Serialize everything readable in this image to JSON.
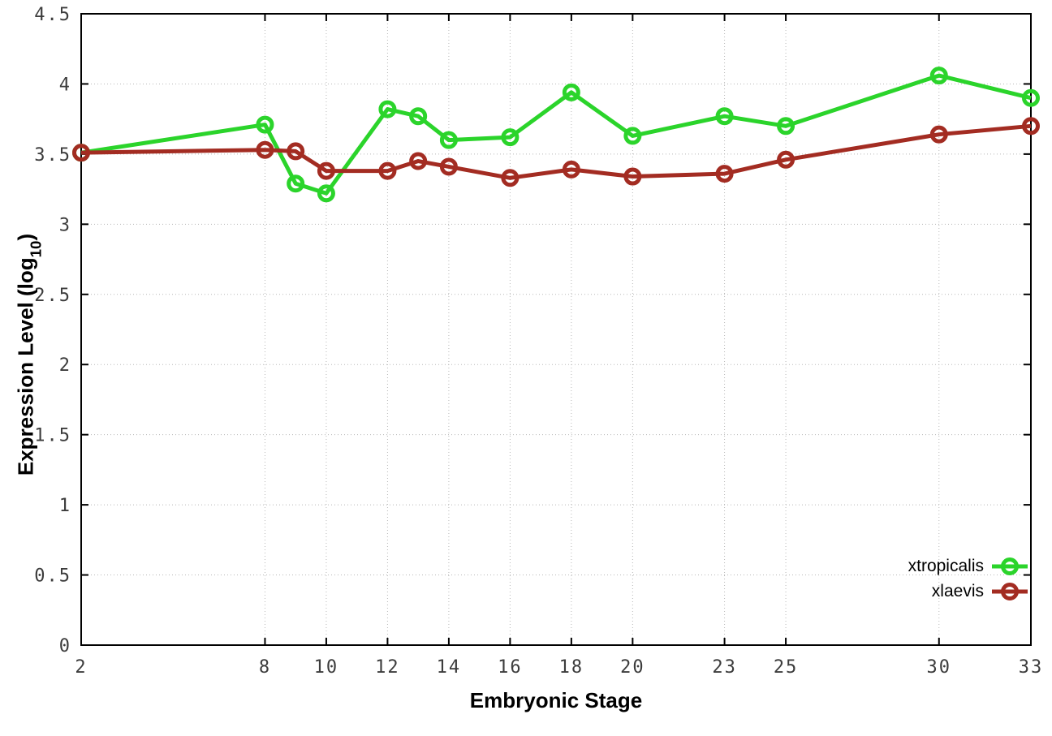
{
  "chart_data": {
    "type": "line",
    "title": "",
    "xlabel": "Embryonic Stage",
    "ylabel": {
      "pre": "Expression Level (log",
      "sub": "10",
      "post": ")"
    },
    "xlim": [
      2,
      33
    ],
    "ylim": [
      0,
      4.5
    ],
    "xticks": [
      2,
      8,
      10,
      12,
      14,
      16,
      18,
      20,
      23,
      25,
      30,
      33
    ],
    "yticks": [
      0,
      0.5,
      1,
      1.5,
      2,
      2.5,
      3,
      3.5,
      4,
      4.5
    ],
    "grid": true,
    "legend_position": "bottom-right",
    "x": [
      2,
      8,
      9,
      10,
      12,
      13,
      14,
      16,
      18,
      20,
      23,
      25,
      30,
      33
    ],
    "series": [
      {
        "name": "xtropicalis",
        "color": "#2bd42b",
        "values": [
          3.51,
          3.71,
          3.29,
          3.22,
          3.82,
          3.77,
          3.6,
          3.62,
          3.94,
          3.63,
          3.77,
          3.7,
          4.06,
          3.9
        ]
      },
      {
        "name": "xlaevis",
        "color": "#a32c22",
        "values": [
          3.51,
          3.53,
          3.52,
          3.38,
          3.38,
          3.45,
          3.41,
          3.33,
          3.39,
          3.34,
          3.36,
          3.46,
          3.64,
          3.7
        ]
      }
    ]
  }
}
